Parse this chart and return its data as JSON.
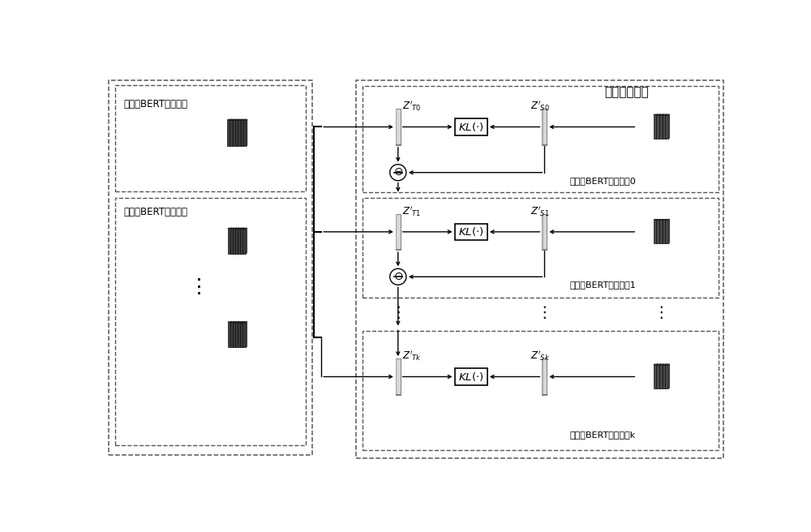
{
  "bg_color": "#ffffff",
  "fig_width": 10.0,
  "fig_height": 6.56,
  "dpi": 100,
  "student_queue_label": "学生模型队列",
  "teacher_multi_label": "多语言BERT教师模型",
  "teacher_mono_label": "单语言BERT教师模型",
  "student_labels": [
    "多语言BERT学生模型0",
    "多语言BERT学生模型1",
    "多语言BERT学生模型k"
  ],
  "bert_dark": "#484848",
  "bert_student": "#585858",
  "bert_face": "#3a3a3a",
  "bert_side": "#606060",
  "bert_top": "#707070",
  "light_gray_bar": "#c8c8c8",
  "bar_edge": "#888888",
  "bar_shade": "#a8a8a8"
}
